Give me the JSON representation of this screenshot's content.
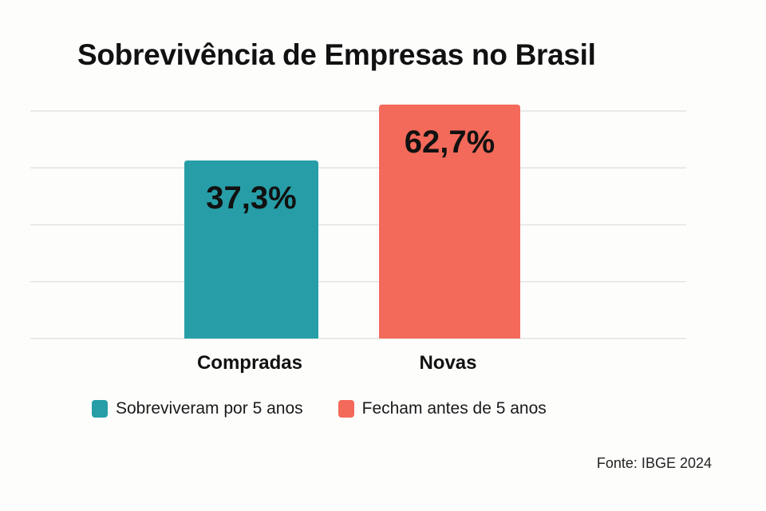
{
  "chart_data": {
    "type": "bar",
    "title": "Sobrevivência de Empresas no Brasil",
    "categories": [
      "Compradas",
      "Novas"
    ],
    "values": [
      37.3,
      62.7
    ],
    "data_labels": [
      "37,3%",
      "62,7%"
    ],
    "unit": "%",
    "series": [
      {
        "name": "Sobreviveram por 5 anos",
        "color": "#279ea7",
        "category": "Compradas",
        "value": 37.3,
        "label": "37,3%"
      },
      {
        "name": "Fecham antes de 5 anos",
        "color": "#f36a5a",
        "category": "Novas",
        "value": 62.7,
        "label": "62,7%"
      }
    ],
    "xlabel": "",
    "ylabel": "",
    "grid": true,
    "gridline_count": 5,
    "legend_position": "bottom",
    "source": "Fonte: IBGE 2024"
  }
}
